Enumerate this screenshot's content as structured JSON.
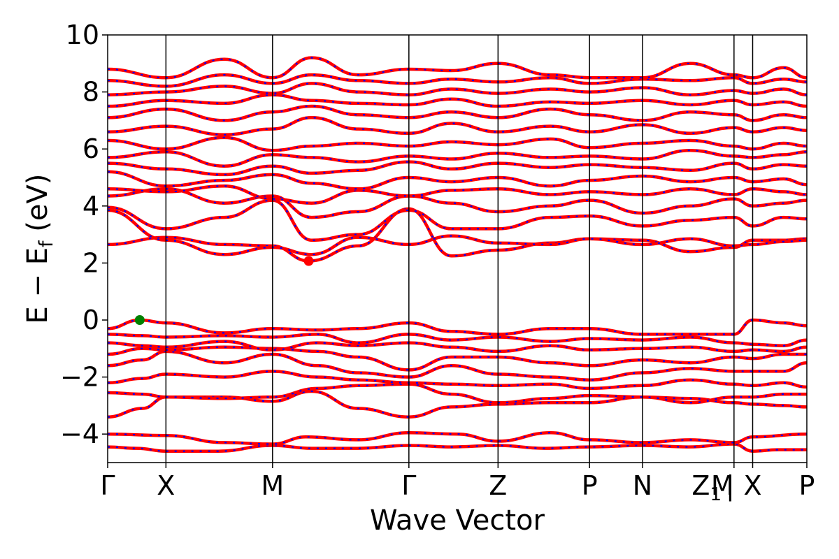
{
  "chart_data": {
    "type": "line",
    "title": "",
    "xlabel": "Wave Vector",
    "ylabel": "E − E_f (eV)",
    "ylabel_parts": {
      "pre": "E − E",
      "sub": "f",
      "post": " (eV)"
    },
    "ylim": [
      -5,
      10
    ],
    "yticks": [
      -4,
      -2,
      0,
      2,
      4,
      6,
      8,
      10
    ],
    "ytick_labels": [
      "−4",
      "−2",
      "0",
      "2",
      "4",
      "6",
      "8",
      "10"
    ],
    "xlim": [
      0,
      12
    ],
    "high_symmetry_points": [
      {
        "label": "Γ",
        "x": 0.0
      },
      {
        "label": "X",
        "x": 1.0
      },
      {
        "label": "M",
        "x": 2.83
      },
      {
        "label": "Γ",
        "x": 5.17
      },
      {
        "label": "Z",
        "x": 6.7
      },
      {
        "label": "P",
        "x": 8.27
      },
      {
        "label": "N",
        "x": 9.18
      },
      {
        "label": "Z1|",
        "x": 10.75
      },
      {
        "label": "X",
        "x": 11.07
      },
      {
        "label": "P",
        "x": 12.0
      }
    ],
    "path_break_x": 11.07,
    "extra_label": {
      "text": "M",
      "x": 10.6
    },
    "vbm": {
      "x": 0.55,
      "y": 0.0,
      "color": "#008000"
    },
    "cbm": {
      "x": 3.45,
      "y": 2.07,
      "color": "#ff0000"
    },
    "colors": {
      "bands": "#ff0000",
      "dash": "#0000ff"
    },
    "series": [
      {
        "x": [
          0,
          0.5,
          1.0,
          1.9,
          2.83,
          3.5,
          4.3,
          5.17,
          5.9,
          6.7,
          7.5,
          8.27,
          9.18,
          9.97,
          10.75,
          11.07,
          11.5,
          12.0
        ],
        "y": [
          -4.45,
          -4.5,
          -4.6,
          -4.6,
          -4.4,
          -4.5,
          -4.5,
          -4.4,
          -4.45,
          -4.4,
          -4.5,
          -4.45,
          -4.4,
          -4.45,
          -4.35,
          -4.6,
          -4.55,
          -4.55
        ]
      },
      {
        "x": [
          0,
          1.0,
          2.0,
          2.83,
          3.4,
          4.3,
          5.17,
          6.0,
          6.7,
          7.6,
          8.27,
          9.18,
          10.0,
          10.75,
          11.07,
          12.0
        ],
        "y": [
          -4.0,
          -4.05,
          -4.3,
          -4.35,
          -4.1,
          -4.2,
          -3.95,
          -4.0,
          -4.25,
          -3.95,
          -4.2,
          -4.3,
          -4.2,
          -4.3,
          -4.1,
          -4.0
        ]
      },
      {
        "x": [
          0,
          0.6,
          1.0,
          2.0,
          2.83,
          3.5,
          4.3,
          5.17,
          5.9,
          6.7,
          7.6,
          8.27,
          9.18,
          10.0,
          10.75,
          11.07,
          11.6,
          12.0
        ],
        "y": [
          -3.4,
          -3.1,
          -2.7,
          -2.7,
          -2.85,
          -2.5,
          -3.1,
          -3.4,
          -3.05,
          -2.95,
          -2.9,
          -2.9,
          -2.7,
          -2.75,
          -2.9,
          -2.95,
          -3.0,
          -3.05
        ]
      },
      {
        "x": [
          0,
          0.6,
          1.0,
          2.0,
          2.83,
          3.6,
          4.3,
          5.17,
          5.9,
          6.7,
          7.6,
          8.27,
          9.18,
          10.0,
          10.75,
          11.07,
          11.6,
          12.0
        ],
        "y": [
          -2.55,
          -2.6,
          -2.7,
          -2.75,
          -2.7,
          -2.4,
          -2.3,
          -2.25,
          -2.6,
          -2.9,
          -2.75,
          -2.65,
          -2.7,
          -2.9,
          -2.7,
          -2.7,
          -2.6,
          -2.6
        ]
      },
      {
        "x": [
          0,
          0.6,
          1.0,
          2.0,
          2.83,
          3.6,
          4.3,
          5.17,
          5.9,
          6.7,
          7.6,
          8.27,
          9.18,
          10.0,
          10.75,
          11.07,
          11.6,
          12.0
        ],
        "y": [
          -2.2,
          -2.05,
          -1.9,
          -2.0,
          -1.8,
          -2.0,
          -2.1,
          -2.2,
          -2.25,
          -2.3,
          -2.25,
          -2.4,
          -2.3,
          -2.1,
          -2.25,
          -2.3,
          -2.2,
          -2.35
        ]
      },
      {
        "x": [
          0,
          0.6,
          1.0,
          2.0,
          2.83,
          3.6,
          4.3,
          5.17,
          5.9,
          6.7,
          7.6,
          8.27,
          9.18,
          10.0,
          10.75,
          11.07,
          11.6,
          12.0
        ],
        "y": [
          -1.6,
          -1.4,
          -1.1,
          -1.5,
          -1.2,
          -1.6,
          -1.85,
          -2.0,
          -1.6,
          -1.9,
          -2.0,
          -2.1,
          -1.85,
          -1.7,
          -1.8,
          -1.8,
          -1.8,
          -1.5
        ]
      },
      {
        "x": [
          0,
          0.6,
          1.0,
          2.0,
          2.83,
          3.6,
          4.3,
          5.17,
          5.9,
          6.7,
          7.6,
          8.27,
          9.18,
          10.0,
          10.75,
          11.07,
          11.6,
          12.0
        ],
        "y": [
          -1.2,
          -1.0,
          -1.05,
          -0.95,
          -1.0,
          -1.1,
          -1.3,
          -1.75,
          -1.3,
          -1.3,
          -1.5,
          -1.6,
          -1.4,
          -1.5,
          -1.3,
          -1.35,
          -1.2,
          -1.2
        ]
      },
      {
        "x": [
          0,
          0.6,
          1.0,
          2.0,
          2.83,
          3.6,
          4.3,
          5.17,
          5.9,
          6.7,
          7.6,
          8.27,
          9.18,
          10.0,
          10.75,
          11.07,
          11.6,
          12.0
        ],
        "y": [
          -0.8,
          -0.9,
          -0.95,
          -0.75,
          -1.05,
          -0.8,
          -0.9,
          -0.8,
          -0.95,
          -1.1,
          -0.9,
          -1.05,
          -1.0,
          -0.95,
          -1.1,
          -1.05,
          -1.1,
          -0.95
        ]
      },
      {
        "x": [
          0,
          0.6,
          1.0,
          2.0,
          2.83,
          3.6,
          4.3,
          5.17,
          5.9,
          6.7,
          7.6,
          8.27,
          9.18,
          10.0,
          10.75,
          11.07,
          11.6,
          12.0
        ],
        "y": [
          -0.5,
          -0.55,
          -0.6,
          -0.55,
          -0.6,
          -0.5,
          -0.8,
          -0.5,
          -0.7,
          -0.6,
          -0.75,
          -0.65,
          -0.7,
          -0.6,
          -0.8,
          -0.85,
          -0.9,
          -0.7
        ]
      },
      {
        "x": [
          0,
          0.55,
          1.0,
          2.0,
          2.83,
          3.6,
          4.3,
          5.17,
          5.9,
          6.7,
          7.6,
          8.27,
          9.18,
          10.0,
          10.75,
          11.07,
          11.6,
          12.0
        ],
        "y": [
          -0.3,
          0.0,
          -0.1,
          -0.45,
          -0.3,
          -0.35,
          -0.3,
          -0.1,
          -0.4,
          -0.5,
          -0.3,
          -0.3,
          -0.5,
          -0.5,
          -0.5,
          0.0,
          -0.1,
          -0.2
        ]
      },
      {
        "x": [
          0,
          1.0,
          2.0,
          2.83,
          3.45,
          4.3,
          5.17,
          5.9,
          6.7,
          7.6,
          8.27,
          9.18,
          10.0,
          10.75,
          11.07,
          11.6,
          12.0
        ],
        "y": [
          2.65,
          2.9,
          2.65,
          2.6,
          2.07,
          2.6,
          3.9,
          2.25,
          2.45,
          2.7,
          2.85,
          2.8,
          2.4,
          2.55,
          2.8,
          2.8,
          2.85
        ]
      },
      {
        "x": [
          0,
          1.0,
          2.0,
          2.83,
          3.5,
          4.3,
          5.17,
          5.9,
          6.7,
          7.6,
          8.27,
          9.18,
          10.0,
          10.75,
          11.07,
          11.6,
          12.0
        ],
        "y": [
          3.85,
          2.8,
          2.3,
          2.55,
          2.3,
          2.9,
          2.65,
          2.95,
          2.7,
          2.65,
          2.85,
          2.65,
          2.85,
          2.6,
          2.65,
          2.75,
          2.8
        ]
      },
      {
        "x": [
          0,
          1.0,
          2.0,
          2.83,
          3.5,
          4.3,
          5.17,
          5.9,
          6.7,
          7.6,
          8.27,
          9.18,
          10.0,
          10.75,
          11.07,
          11.6,
          12.0
        ],
        "y": [
          3.95,
          3.2,
          3.6,
          4.2,
          2.8,
          3.0,
          3.85,
          3.2,
          3.2,
          3.6,
          3.65,
          3.3,
          3.5,
          3.6,
          3.3,
          3.6,
          3.55
        ]
      },
      {
        "x": [
          0,
          1.0,
          2.0,
          2.83,
          3.5,
          4.3,
          5.17,
          5.9,
          6.7,
          7.6,
          8.27,
          9.18,
          10.0,
          10.75,
          11.07,
          11.6,
          12.0
        ],
        "y": [
          4.35,
          4.6,
          4.1,
          4.35,
          3.6,
          3.8,
          4.35,
          4.1,
          3.8,
          4.0,
          4.2,
          3.75,
          4.0,
          4.25,
          4.0,
          4.1,
          4.2
        ]
      },
      {
        "x": [
          0,
          1.0,
          2.0,
          2.83,
          3.5,
          4.3,
          5.17,
          5.9,
          6.7,
          7.6,
          8.27,
          9.18,
          10.0,
          10.75,
          11.07,
          11.6,
          12.0
        ],
        "y": [
          4.6,
          4.5,
          4.7,
          4.25,
          4.1,
          4.55,
          4.35,
          4.55,
          4.6,
          4.4,
          4.5,
          4.4,
          4.6,
          4.4,
          4.6,
          4.5,
          4.4
        ]
      },
      {
        "x": [
          0,
          1.0,
          2.0,
          2.83,
          3.5,
          4.3,
          5.17,
          5.9,
          6.7,
          7.6,
          8.27,
          9.18,
          10.0,
          10.75,
          11.07,
          11.6,
          12.0
        ],
        "y": [
          5.2,
          4.7,
          4.9,
          5.1,
          4.8,
          4.6,
          5.0,
          4.85,
          5.0,
          4.7,
          4.9,
          5.05,
          4.85,
          5.0,
          4.85,
          4.95,
          4.75
        ]
      },
      {
        "x": [
          0,
          1.0,
          2.0,
          2.83,
          3.5,
          4.3,
          5.17,
          5.9,
          6.7,
          7.6,
          8.27,
          9.18,
          10.0,
          10.75,
          11.07,
          11.6,
          12.0
        ],
        "y": [
          5.5,
          5.3,
          5.1,
          5.4,
          5.15,
          5.25,
          5.55,
          5.3,
          5.5,
          5.35,
          5.45,
          5.35,
          5.25,
          5.5,
          5.3,
          5.45,
          5.4
        ]
      },
      {
        "x": [
          0,
          1.0,
          2.0,
          2.83,
          3.5,
          4.3,
          5.17,
          5.9,
          6.7,
          7.6,
          8.27,
          9.18,
          10.0,
          10.75,
          11.07,
          11.6,
          12.0
        ],
        "y": [
          5.7,
          5.9,
          5.4,
          5.8,
          5.7,
          5.55,
          5.75,
          5.65,
          5.85,
          5.7,
          5.75,
          5.65,
          5.95,
          5.75,
          5.7,
          5.8,
          5.9
        ]
      },
      {
        "x": [
          0,
          1.0,
          2.0,
          2.83,
          3.5,
          4.3,
          5.17,
          5.9,
          6.7,
          7.6,
          8.27,
          9.18,
          10.0,
          10.75,
          11.07,
          11.6,
          12.0
        ],
        "y": [
          6.3,
          6.0,
          6.4,
          5.95,
          6.1,
          6.2,
          6.1,
          6.25,
          6.15,
          6.35,
          6.05,
          6.2,
          6.3,
          6.1,
          6.0,
          6.2,
          6.1
        ]
      },
      {
        "x": [
          0,
          1.0,
          2.0,
          2.83,
          3.5,
          4.3,
          5.17,
          5.9,
          6.7,
          7.6,
          8.27,
          9.18,
          10.0,
          10.75,
          11.07,
          11.6,
          12.0
        ],
        "y": [
          6.6,
          6.8,
          6.5,
          6.7,
          7.1,
          6.7,
          6.55,
          6.9,
          6.6,
          6.8,
          6.6,
          6.85,
          6.55,
          6.75,
          6.6,
          6.75,
          6.65
        ]
      },
      {
        "x": [
          0,
          1.0,
          2.0,
          2.83,
          3.5,
          4.3,
          5.17,
          5.9,
          6.7,
          7.6,
          8.27,
          9.18,
          10.0,
          10.75,
          11.07,
          11.6,
          12.0
        ],
        "y": [
          7.1,
          7.4,
          7.0,
          7.3,
          7.5,
          7.2,
          7.1,
          7.3,
          7.1,
          7.4,
          7.2,
          7.0,
          7.3,
          7.2,
          7.0,
          7.2,
          7.1
        ]
      },
      {
        "x": [
          0,
          1.0,
          2.0,
          2.83,
          3.5,
          4.3,
          5.17,
          5.9,
          6.7,
          7.6,
          8.27,
          9.18,
          10.0,
          10.75,
          11.07,
          11.6,
          12.0
        ],
        "y": [
          7.5,
          7.7,
          7.6,
          7.9,
          7.7,
          7.6,
          7.55,
          7.75,
          7.5,
          7.65,
          7.6,
          7.7,
          7.55,
          7.7,
          7.55,
          7.65,
          7.5
        ]
      },
      {
        "x": [
          0,
          1.0,
          2.0,
          2.83,
          3.5,
          4.3,
          5.17,
          5.9,
          6.7,
          7.6,
          8.27,
          9.18,
          10.0,
          10.75,
          11.07,
          11.6,
          12.0
        ],
        "y": [
          7.9,
          8.0,
          8.2,
          7.95,
          8.3,
          8.0,
          7.9,
          8.1,
          7.95,
          8.1,
          8.0,
          8.15,
          7.9,
          8.05,
          7.95,
          8.1,
          7.9
        ]
      },
      {
        "x": [
          0,
          1.0,
          2.0,
          2.83,
          3.5,
          4.3,
          5.17,
          5.9,
          6.7,
          7.6,
          8.27,
          9.18,
          10.0,
          10.75,
          11.07,
          11.6,
          12.0
        ],
        "y": [
          8.4,
          8.2,
          8.6,
          8.3,
          8.6,
          8.4,
          8.3,
          8.45,
          8.35,
          8.5,
          8.3,
          8.45,
          8.4,
          8.5,
          8.3,
          8.45,
          8.35
        ]
      },
      {
        "x": [
          0,
          1.0,
          2.0,
          2.83,
          3.5,
          4.3,
          5.17,
          5.9,
          6.7,
          7.6,
          8.27,
          9.18,
          10.0,
          10.75,
          11.07,
          11.6,
          12.0
        ],
        "y": [
          8.8,
          8.5,
          9.15,
          8.5,
          9.2,
          8.6,
          8.8,
          8.75,
          9.0,
          8.6,
          8.5,
          8.5,
          9.0,
          8.6,
          8.5,
          8.85,
          8.5
        ]
      }
    ]
  }
}
